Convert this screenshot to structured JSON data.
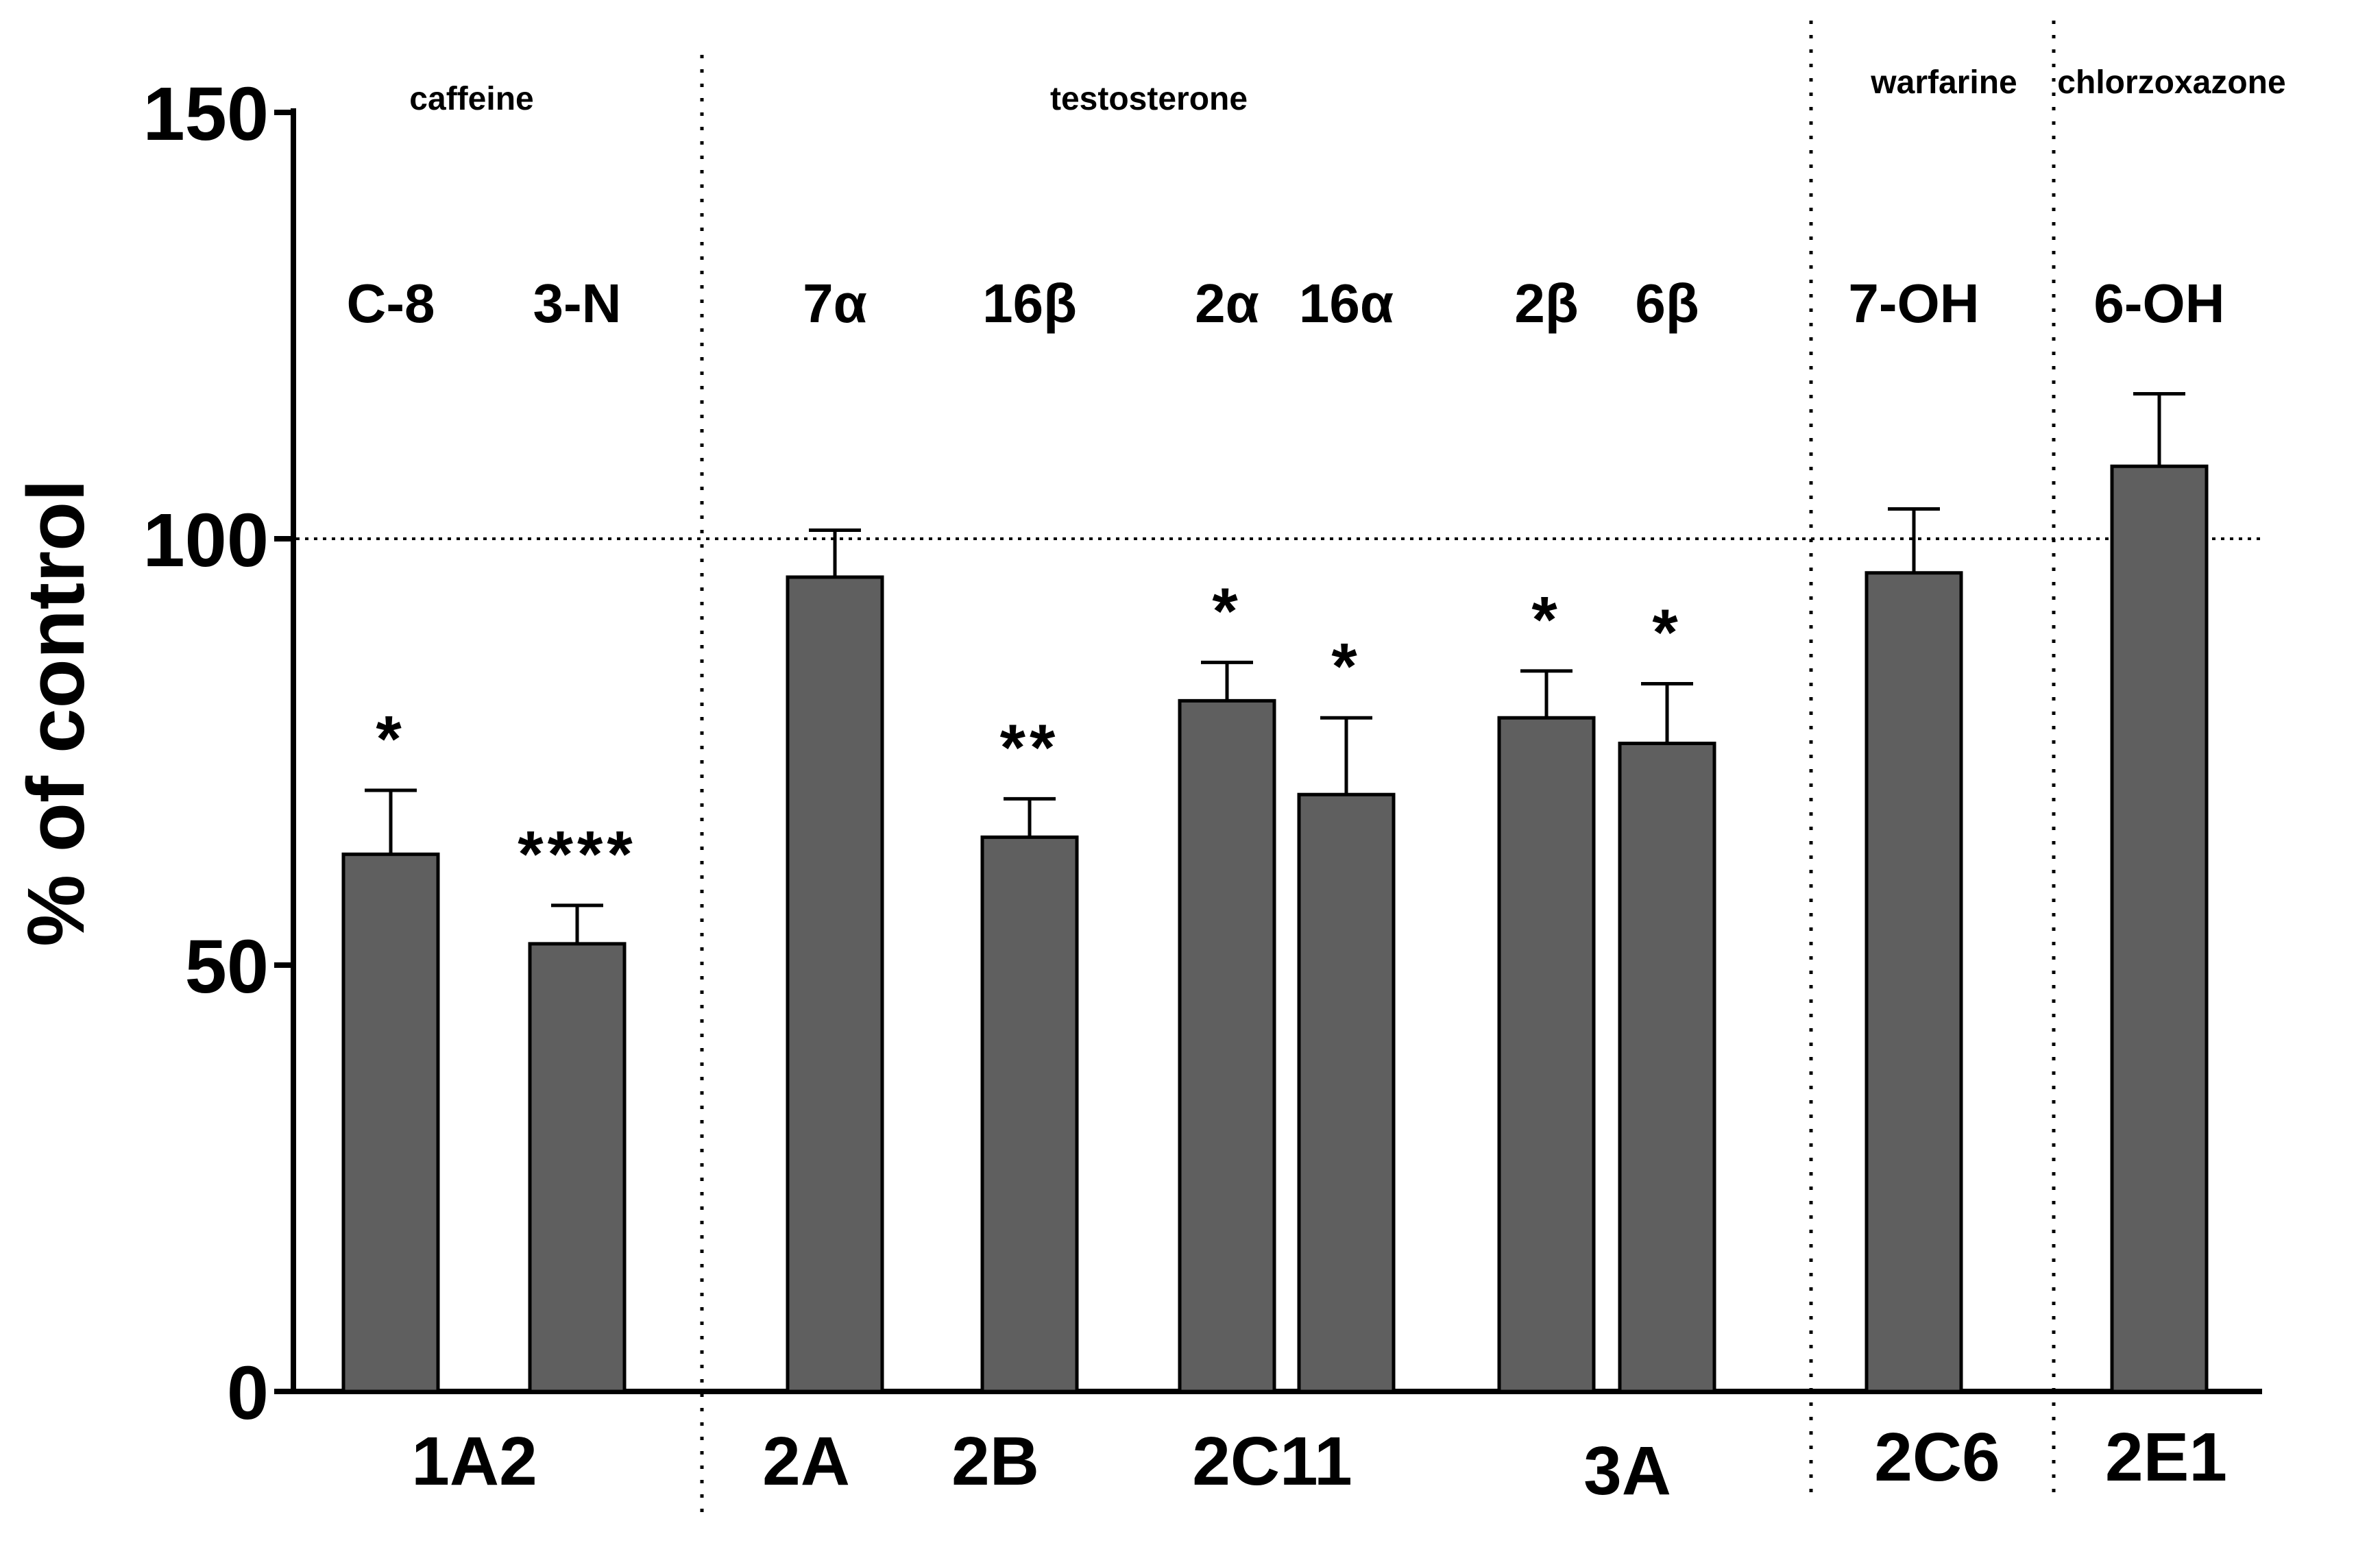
{
  "chart_data": {
    "type": "bar",
    "ylabel": "% of control",
    "ylim": [
      0,
      150
    ],
    "yticks": [
      0,
      50,
      100,
      150
    ],
    "reference_line": 100,
    "groups": [
      {
        "substrate": "caffeine",
        "enzymes": [
          {
            "label": "1A2"
          }
        ]
      },
      {
        "substrate": "testosterone",
        "enzymes": [
          {
            "label": "2A"
          },
          {
            "label": "2B"
          },
          {
            "label": "2C11"
          },
          {
            "label": "3A"
          }
        ]
      },
      {
        "substrate": "warfarine",
        "enzymes": [
          {
            "label": "2C6"
          }
        ]
      },
      {
        "substrate": "chlorzoxazone",
        "enzymes": [
          {
            "label": "2E1"
          }
        ]
      }
    ],
    "bars": [
      {
        "metabolite": "C-8",
        "enzyme": "1A2",
        "value": 63,
        "error": 7.5,
        "significance": "*"
      },
      {
        "metabolite": "3-N",
        "enzyme": "1A2",
        "value": 52.5,
        "error": 4.5,
        "significance": "****"
      },
      {
        "metabolite": "7α",
        "enzyme": "2A",
        "value": 95.5,
        "error": 5.5,
        "significance": ""
      },
      {
        "metabolite": "16β",
        "enzyme": "2B",
        "value": 65,
        "error": 4.5,
        "significance": "**"
      },
      {
        "metabolite": "2α",
        "enzyme": "2C11",
        "value": 81,
        "error": 4.5,
        "significance": "*"
      },
      {
        "metabolite": "16α",
        "enzyme": "2C11",
        "value": 70,
        "error": 9.0,
        "significance": "*"
      },
      {
        "metabolite": "2β",
        "enzyme": "3A",
        "value": 79,
        "error": 5.5,
        "significance": "*"
      },
      {
        "metabolite": "6β",
        "enzyme": "3A",
        "value": 76,
        "error": 7.0,
        "significance": "*"
      },
      {
        "metabolite": "7-OH",
        "enzyme": "2C6",
        "value": 96,
        "error": 7.5,
        "significance": ""
      },
      {
        "metabolite": "6-OH",
        "enzyme": "2E1",
        "value": 108.5,
        "error": 8.5,
        "significance": ""
      }
    ]
  }
}
